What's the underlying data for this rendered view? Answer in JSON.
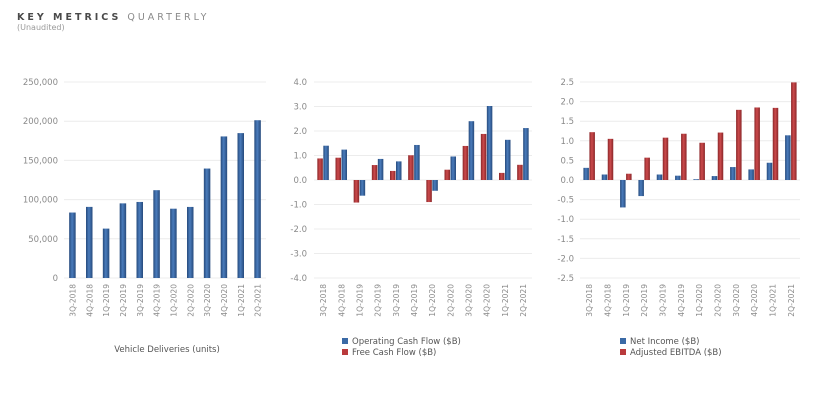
{
  "header": {
    "title_bold": "KEY METRICS",
    "title_light": "QUARTERLY",
    "subtitle": "(Unaudited)"
  },
  "colors": {
    "blue": "#3b6aa6",
    "blue_dark": "#264a7c",
    "red": "#b93a3c",
    "red_dark": "#8a2628",
    "grid": "#ececec"
  },
  "chart_data": [
    {
      "type": "bar",
      "title": "",
      "xlabel": "Vehicle Deliveries (units)",
      "ylabel": "",
      "categories": [
        "3Q-2018",
        "4Q-2018",
        "1Q-2019",
        "2Q-2019",
        "3Q-2019",
        "4Q-2019",
        "1Q-2020",
        "2Q-2020",
        "3Q-2020",
        "4Q-2020",
        "1Q-2021",
        "2Q-2021"
      ],
      "ylim": [
        0,
        250000
      ],
      "yticks": [
        0,
        50000,
        100000,
        150000,
        200000,
        250000
      ],
      "ytick_labels": [
        "0",
        "50,000",
        "100,000",
        "150,000",
        "200,000",
        "250,000"
      ],
      "grid": true,
      "series": [
        {
          "name": "Vehicle Deliveries (units)",
          "color": "blue",
          "values": [
            83500,
            90700,
            63000,
            95200,
            97000,
            112000,
            88400,
            90650,
            139600,
            180570,
            184800,
            201250
          ]
        }
      ],
      "legend": "none"
    },
    {
      "type": "bar",
      "title": "",
      "xlabel": "",
      "ylabel": "",
      "categories": [
        "3Q-2018",
        "4Q-2018",
        "1Q-2019",
        "2Q-2019",
        "3Q-2019",
        "4Q-2019",
        "1Q-2020",
        "2Q-2020",
        "3Q-2020",
        "4Q-2020",
        "1Q-2021",
        "2Q-2021"
      ],
      "ylim": [
        -4.0,
        4.0
      ],
      "yticks": [
        -4,
        -3,
        -2,
        -1,
        0,
        1,
        2,
        3,
        4
      ],
      "ytick_labels": [
        "-4.0",
        "-3.0",
        "-2.0",
        "-1.0",
        "0.0",
        "1.0",
        "2.0",
        "3.0",
        "4.0"
      ],
      "grid": true,
      "series": [
        {
          "name": "Free Cash Flow ($B)",
          "color": "red",
          "values": [
            0.88,
            0.91,
            -0.92,
            0.61,
            0.37,
            1.01,
            -0.9,
            0.42,
            1.39,
            1.88,
            0.29,
            0.62
          ]
        },
        {
          "name": "Operating Cash Flow ($B)",
          "color": "blue",
          "values": [
            1.4,
            1.24,
            -0.64,
            0.86,
            0.76,
            1.43,
            -0.44,
            0.96,
            2.4,
            3.02,
            1.64,
            2.12
          ]
        }
      ],
      "legend_entries": [
        {
          "label": "Operating Cash Flow ($B)",
          "color": "blue"
        },
        {
          "label": "Free Cash Flow ($B)",
          "color": "red"
        }
      ],
      "legend": "bottom"
    },
    {
      "type": "bar",
      "title": "",
      "xlabel": "",
      "ylabel": "",
      "categories": [
        "3Q-2018",
        "4Q-2018",
        "1Q-2019",
        "2Q-2019",
        "3Q-2019",
        "4Q-2019",
        "1Q-2020",
        "2Q-2020",
        "3Q-2020",
        "4Q-2020",
        "1Q-2021",
        "2Q-2021"
      ],
      "ylim": [
        -2.5,
        2.5
      ],
      "yticks": [
        -2.5,
        -2.0,
        -1.5,
        -1.0,
        -0.5,
        0,
        0.5,
        1.0,
        1.5,
        2.0,
        2.5
      ],
      "ytick_labels": [
        "-2.5",
        "-2.0",
        "-1.5",
        "-1.0",
        "-0.5",
        "0.0",
        "0.5",
        "1.0",
        "1.5",
        "2.0",
        "2.5"
      ],
      "grid": true,
      "series": [
        {
          "name": "Net Income ($B)",
          "color": "blue",
          "values": [
            0.31,
            0.14,
            -0.7,
            -0.41,
            0.14,
            0.11,
            0.02,
            0.1,
            0.33,
            0.27,
            0.44,
            1.14
          ]
        },
        {
          "name": "Adjusted EBITDA ($B)",
          "color": "red",
          "values": [
            1.22,
            1.05,
            0.16,
            0.57,
            1.08,
            1.18,
            0.95,
            1.21,
            1.79,
            1.85,
            1.84,
            2.49
          ]
        }
      ],
      "legend_entries": [
        {
          "label": "Net Income ($B)",
          "color": "blue"
        },
        {
          "label": "Adjusted EBITDA ($B)",
          "color": "red"
        }
      ],
      "legend": "bottom"
    }
  ]
}
